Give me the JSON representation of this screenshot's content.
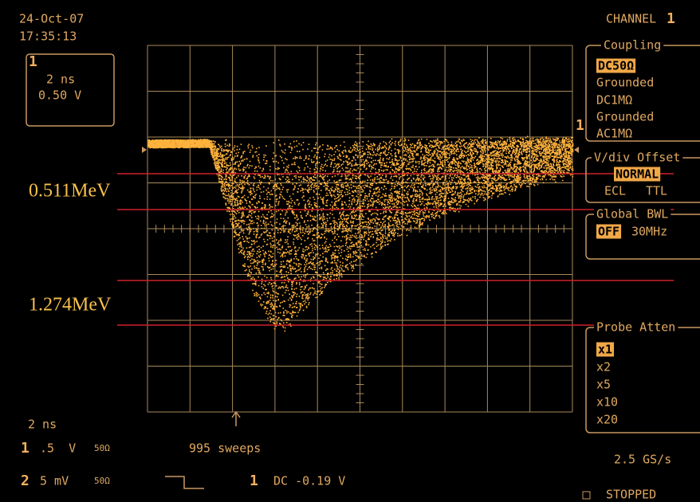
{
  "header": {
    "date": "24-Oct-07",
    "time": "17:35:13"
  },
  "channel_box": {
    "number": "1",
    "timebase": "2 ns",
    "volts": "0.50 V"
  },
  "annotations": {
    "upper": "0.511MeV",
    "lower": "1.274MeV",
    "trace_marker": "1"
  },
  "menu": {
    "channel_title": "CHANNEL",
    "channel_number": "1",
    "coupling": {
      "title": "Coupling",
      "options": [
        "DC50Ω",
        "Grounded",
        "DC1MΩ",
        "Grounded",
        "AC1MΩ"
      ]
    },
    "vdiv": {
      "title": "V/div Offset",
      "options": [
        "NORMAL",
        "ECL",
        "TTL"
      ]
    },
    "bwl": {
      "title": "Global BWL",
      "options": [
        "OFF",
        "30MHz"
      ]
    },
    "probe": {
      "title": "Probe Atten",
      "options": [
        "x1",
        "x2",
        "x5",
        "x10",
        "x20"
      ]
    }
  },
  "status": {
    "timebase": "2 ns",
    "ch1_number": "1",
    "ch1_scale": ".5  V",
    "ch1_imp": "50Ω",
    "sweeps": "995 sweeps",
    "ch2_number": "2",
    "ch2_scale": "5 mV",
    "ch2_imp": "50Ω",
    "trigger_channel": "1",
    "trigger_level": "DC -0.19 V",
    "sample_rate": "2.5 GS/s",
    "state": "STOPPED"
  }
}
